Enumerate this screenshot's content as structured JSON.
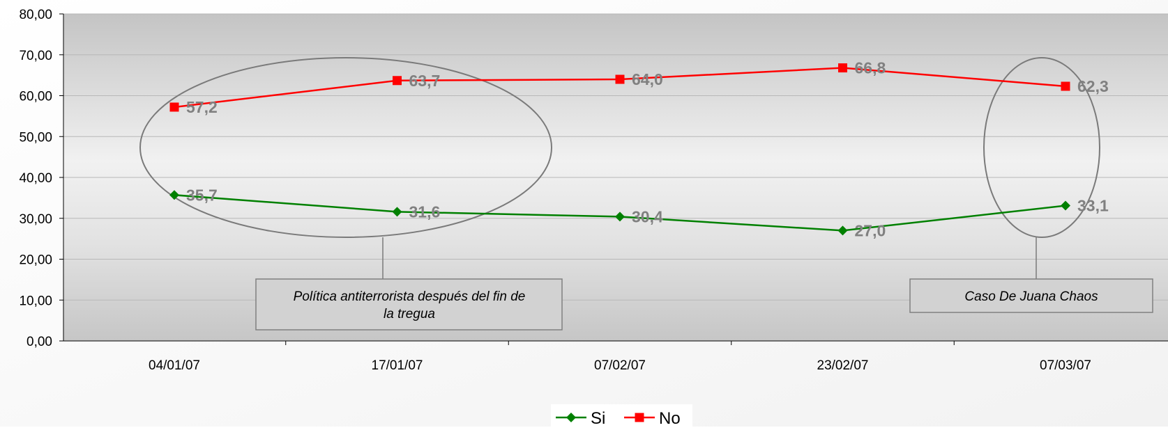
{
  "chart_data": {
    "type": "line",
    "title": "",
    "xlabel": "",
    "ylabel": "",
    "categories": [
      "04/01/07",
      "17/01/07",
      "07/02/07",
      "23/02/07",
      "07/03/07"
    ],
    "ylim": [
      0,
      80
    ],
    "yticks": [
      "0,00",
      "10,00",
      "20,00",
      "30,00",
      "40,00",
      "50,00",
      "60,00",
      "70,00",
      "80,00"
    ],
    "grid": true,
    "legend_position": "bottom",
    "series": [
      {
        "name": "Si",
        "values": [
          35.7,
          31.6,
          30.4,
          27.0,
          33.1
        ],
        "labels": [
          "35,7",
          "31,6",
          "30,4",
          "27,0",
          "33,1"
        ],
        "color": "#008000",
        "marker": "diamond"
      },
      {
        "name": "No",
        "values": [
          57.2,
          63.7,
          64.0,
          66.8,
          62.3
        ],
        "labels": [
          "57,2",
          "63,7",
          "64,0",
          "66,8",
          "62,3"
        ],
        "color": "#ff0000",
        "marker": "square"
      }
    ],
    "annotations": [
      {
        "lines": [
          "Política antiterrorista después del fin de",
          "la tregua"
        ]
      },
      {
        "lines": [
          "Caso De Juana Chaos"
        ]
      }
    ]
  }
}
